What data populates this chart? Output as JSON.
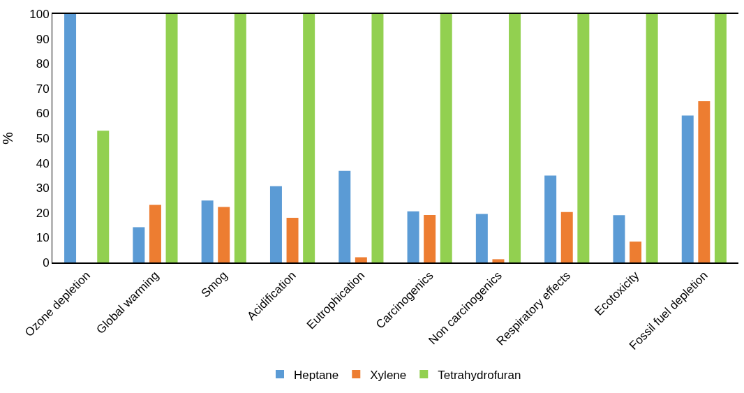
{
  "chart_data": {
    "type": "bar",
    "ylabel": "%",
    "categories": [
      "Ozone depletion",
      "Global warming",
      "Smog",
      "Acidification",
      "Eutrophication",
      "Carcinogenics",
      "Non carcinogenics",
      "Respiratory effects",
      "Ecotoxicity",
      "Fossil fuel depletion"
    ],
    "series": [
      {
        "name": "Heptane",
        "color": "#5b9bd5",
        "values": [
          100,
          14.2,
          24.9,
          30.7,
          36.9,
          20.6,
          19.5,
          35.0,
          19.0,
          59.1
        ]
      },
      {
        "name": "Xylene",
        "color": "#ed7d31",
        "values": [
          0,
          23.2,
          22.3,
          18.0,
          2.1,
          19.1,
          1.3,
          20.3,
          8.4,
          64.9
        ]
      },
      {
        "name": "Tetrahydrofuran",
        "color": "#92d050",
        "values": [
          53.0,
          100,
          100,
          100,
          100,
          100,
          100,
          100,
          100,
          100
        ]
      }
    ],
    "ylim": [
      0,
      100
    ],
    "yticks": [
      0,
      10,
      20,
      30,
      40,
      50,
      60,
      70,
      80,
      90,
      100
    ],
    "legend": "bottom"
  }
}
